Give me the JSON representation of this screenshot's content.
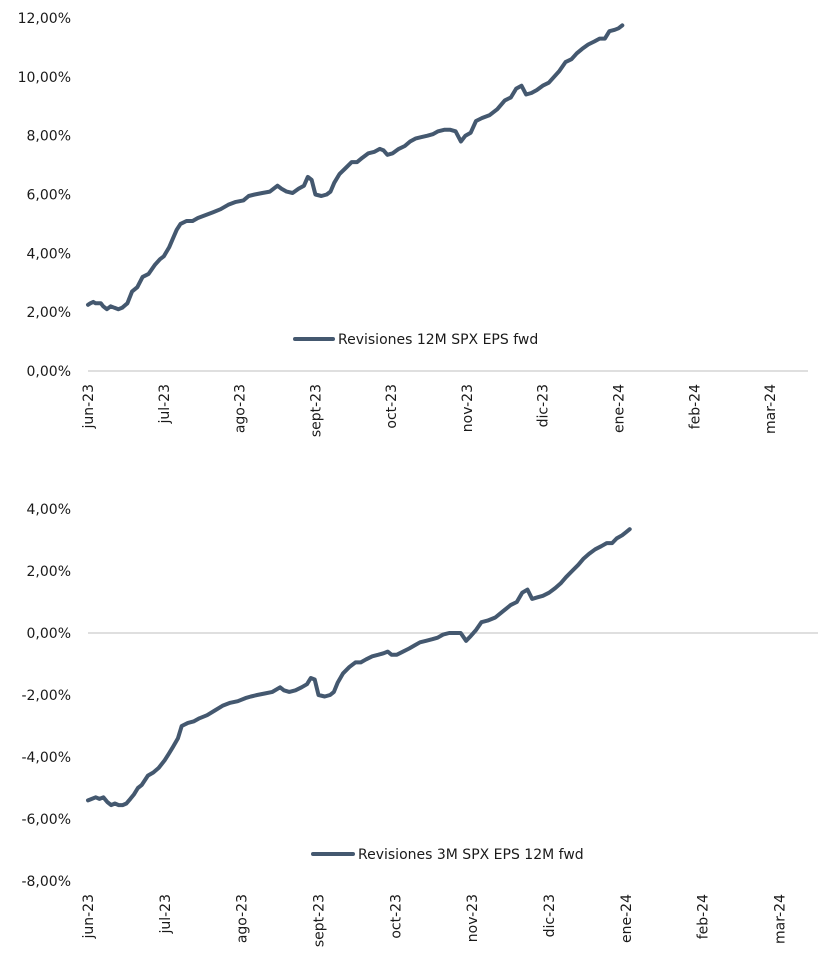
{
  "colors": {
    "series": "#44586F",
    "axis": "#BFBFBF",
    "text": "#1a1a1a"
  },
  "chart_data": [
    {
      "type": "line",
      "title": "",
      "xlabel": "",
      "ylabel": "",
      "x_ticks": [
        "jun-23",
        "jul-23",
        "ago-23",
        "sept-23",
        "oct-23",
        "nov-23",
        "dic-23",
        "ene-24",
        "feb-24",
        "mar-24"
      ],
      "y_ticks": [
        "0,00%",
        "2,00%",
        "4,00%",
        "6,00%",
        "8,00%",
        "10,00%",
        "12,00%"
      ],
      "ylim": [
        0,
        12
      ],
      "legend_position": "inside-bottom-right",
      "series": [
        {
          "name": "Revisiones 12M SPX EPS fwd",
          "points": [
            [
              0.0,
              2.25
            ],
            [
              0.03,
              2.3
            ],
            [
              0.07,
              2.35
            ],
            [
              0.1,
              2.3
            ],
            [
              0.13,
              2.3
            ],
            [
              0.17,
              2.3
            ],
            [
              0.2,
              2.2
            ],
            [
              0.25,
              2.1
            ],
            [
              0.3,
              2.2
            ],
            [
              0.35,
              2.15
            ],
            [
              0.4,
              2.1
            ],
            [
              0.45,
              2.15
            ],
            [
              0.52,
              2.3
            ],
            [
              0.58,
              2.7
            ],
            [
              0.65,
              2.85
            ],
            [
              0.72,
              3.2
            ],
            [
              0.8,
              3.3
            ],
            [
              0.88,
              3.6
            ],
            [
              0.95,
              3.8
            ],
            [
              1.0,
              3.9
            ],
            [
              1.07,
              4.2
            ],
            [
              1.12,
              4.5
            ],
            [
              1.17,
              4.8
            ],
            [
              1.22,
              5.0
            ],
            [
              1.3,
              5.1
            ],
            [
              1.38,
              5.1
            ],
            [
              1.45,
              5.2
            ],
            [
              1.55,
              5.3
            ],
            [
              1.65,
              5.4
            ],
            [
              1.75,
              5.5
            ],
            [
              1.85,
              5.65
            ],
            [
              1.95,
              5.75
            ],
            [
              2.05,
              5.8
            ],
            [
              2.12,
              5.95
            ],
            [
              2.2,
              6.0
            ],
            [
              2.3,
              6.05
            ],
            [
              2.4,
              6.1
            ],
            [
              2.5,
              6.3
            ],
            [
              2.55,
              6.2
            ],
            [
              2.62,
              6.1
            ],
            [
              2.7,
              6.05
            ],
            [
              2.78,
              6.2
            ],
            [
              2.85,
              6.3
            ],
            [
              2.9,
              6.6
            ],
            [
              2.95,
              6.5
            ],
            [
              3.0,
              6.0
            ],
            [
              3.08,
              5.95
            ],
            [
              3.15,
              6.0
            ],
            [
              3.2,
              6.1
            ],
            [
              3.25,
              6.4
            ],
            [
              3.32,
              6.7
            ],
            [
              3.4,
              6.9
            ],
            [
              3.48,
              7.1
            ],
            [
              3.55,
              7.1
            ],
            [
              3.62,
              7.25
            ],
            [
              3.7,
              7.4
            ],
            [
              3.78,
              7.45
            ],
            [
              3.85,
              7.55
            ],
            [
              3.9,
              7.5
            ],
            [
              3.95,
              7.35
            ],
            [
              4.02,
              7.4
            ],
            [
              4.1,
              7.55
            ],
            [
              4.18,
              7.65
            ],
            [
              4.25,
              7.8
            ],
            [
              4.32,
              7.9
            ],
            [
              4.4,
              7.95
            ],
            [
              4.48,
              8.0
            ],
            [
              4.55,
              8.05
            ],
            [
              4.62,
              8.15
            ],
            [
              4.7,
              8.2
            ],
            [
              4.78,
              8.2
            ],
            [
              4.85,
              8.15
            ],
            [
              4.92,
              7.8
            ],
            [
              4.98,
              8.0
            ],
            [
              5.05,
              8.1
            ],
            [
              5.12,
              8.5
            ],
            [
              5.2,
              8.6
            ],
            [
              5.3,
              8.7
            ],
            [
              5.4,
              8.9
            ],
            [
              5.5,
              9.2
            ],
            [
              5.58,
              9.3
            ],
            [
              5.65,
              9.6
            ],
            [
              5.72,
              9.7
            ],
            [
              5.78,
              9.4
            ],
            [
              5.85,
              9.45
            ],
            [
              5.92,
              9.55
            ],
            [
              6.0,
              9.7
            ],
            [
              6.08,
              9.8
            ],
            [
              6.15,
              10.0
            ],
            [
              6.22,
              10.2
            ],
            [
              6.3,
              10.5
            ],
            [
              6.38,
              10.6
            ],
            [
              6.45,
              10.8
            ],
            [
              6.52,
              10.95
            ],
            [
              6.6,
              11.1
            ],
            [
              6.68,
              11.2
            ],
            [
              6.75,
              11.3
            ],
            [
              6.82,
              11.3
            ],
            [
              6.88,
              11.55
            ],
            [
              6.95,
              11.6
            ],
            [
              7.0,
              11.65
            ],
            [
              7.05,
              11.75
            ]
          ]
        }
      ]
    },
    {
      "type": "line",
      "title": "",
      "xlabel": "",
      "ylabel": "",
      "x_ticks": [
        "jun-23",
        "jul-23",
        "ago-23",
        "sept-23",
        "oct-23",
        "nov-23",
        "dic-23",
        "ene-24",
        "feb-24",
        "mar-24"
      ],
      "y_ticks": [
        "-8,00%",
        "-6,00%",
        "-4,00%",
        "-2,00%",
        "0,00%",
        "2,00%",
        "4,00%"
      ],
      "ylim": [
        -8,
        4
      ],
      "legend_position": "inside-bottom-right",
      "series": [
        {
          "name": "Revisiones 3M SPX EPS 12M fwd",
          "points": [
            [
              0.0,
              -5.4
            ],
            [
              0.05,
              -5.35
            ],
            [
              0.1,
              -5.3
            ],
            [
              0.15,
              -5.35
            ],
            [
              0.2,
              -5.3
            ],
            [
              0.25,
              -5.45
            ],
            [
              0.3,
              -5.55
            ],
            [
              0.35,
              -5.5
            ],
            [
              0.4,
              -5.55
            ],
            [
              0.45,
              -5.55
            ],
            [
              0.5,
              -5.5
            ],
            [
              0.55,
              -5.35
            ],
            [
              0.6,
              -5.2
            ],
            [
              0.65,
              -5.0
            ],
            [
              0.7,
              -4.9
            ],
            [
              0.78,
              -4.6
            ],
            [
              0.85,
              -4.5
            ],
            [
              0.92,
              -4.35
            ],
            [
              1.0,
              -4.1
            ],
            [
              1.05,
              -3.9
            ],
            [
              1.1,
              -3.7
            ],
            [
              1.17,
              -3.4
            ],
            [
              1.22,
              -3.0
            ],
            [
              1.3,
              -2.9
            ],
            [
              1.38,
              -2.85
            ],
            [
              1.45,
              -2.75
            ],
            [
              1.55,
              -2.65
            ],
            [
              1.65,
              -2.5
            ],
            [
              1.75,
              -2.35
            ],
            [
              1.85,
              -2.25
            ],
            [
              1.95,
              -2.2
            ],
            [
              2.05,
              -2.1
            ],
            [
              2.12,
              -2.05
            ],
            [
              2.2,
              -2.0
            ],
            [
              2.3,
              -1.95
            ],
            [
              2.4,
              -1.9
            ],
            [
              2.5,
              -1.75
            ],
            [
              2.55,
              -1.85
            ],
            [
              2.62,
              -1.9
            ],
            [
              2.7,
              -1.85
            ],
            [
              2.78,
              -1.75
            ],
            [
              2.85,
              -1.65
            ],
            [
              2.9,
              -1.45
            ],
            [
              2.95,
              -1.5
            ],
            [
              3.0,
              -2.0
            ],
            [
              3.08,
              -2.05
            ],
            [
              3.15,
              -2.0
            ],
            [
              3.2,
              -1.9
            ],
            [
              3.25,
              -1.6
            ],
            [
              3.32,
              -1.3
            ],
            [
              3.4,
              -1.1
            ],
            [
              3.48,
              -0.95
            ],
            [
              3.55,
              -0.95
            ],
            [
              3.62,
              -0.85
            ],
            [
              3.7,
              -0.75
            ],
            [
              3.78,
              -0.7
            ],
            [
              3.85,
              -0.65
            ],
            [
              3.9,
              -0.6
            ],
            [
              3.95,
              -0.7
            ],
            [
              4.02,
              -0.7
            ],
            [
              4.1,
              -0.6
            ],
            [
              4.18,
              -0.5
            ],
            [
              4.25,
              -0.4
            ],
            [
              4.32,
              -0.3
            ],
            [
              4.4,
              -0.25
            ],
            [
              4.48,
              -0.2
            ],
            [
              4.55,
              -0.15
            ],
            [
              4.62,
              -0.05
            ],
            [
              4.7,
              0.0
            ],
            [
              4.78,
              0.0
            ],
            [
              4.85,
              0.0
            ],
            [
              4.92,
              -0.25
            ],
            [
              4.98,
              -0.1
            ],
            [
              5.05,
              0.1
            ],
            [
              5.12,
              0.35
            ],
            [
              5.2,
              0.4
            ],
            [
              5.3,
              0.5
            ],
            [
              5.4,
              0.7
            ],
            [
              5.5,
              0.9
            ],
            [
              5.58,
              1.0
            ],
            [
              5.65,
              1.3
            ],
            [
              5.72,
              1.4
            ],
            [
              5.78,
              1.1
            ],
            [
              5.85,
              1.15
            ],
            [
              5.92,
              1.2
            ],
            [
              6.0,
              1.3
            ],
            [
              6.08,
              1.45
            ],
            [
              6.15,
              1.6
            ],
            [
              6.22,
              1.8
            ],
            [
              6.3,
              2.0
            ],
            [
              6.38,
              2.2
            ],
            [
              6.45,
              2.4
            ],
            [
              6.52,
              2.55
            ],
            [
              6.6,
              2.7
            ],
            [
              6.68,
              2.8
            ],
            [
              6.75,
              2.9
            ],
            [
              6.82,
              2.9
            ],
            [
              6.88,
              3.05
            ],
            [
              6.95,
              3.15
            ],
            [
              7.0,
              3.25
            ],
            [
              7.05,
              3.35
            ]
          ]
        }
      ]
    }
  ]
}
